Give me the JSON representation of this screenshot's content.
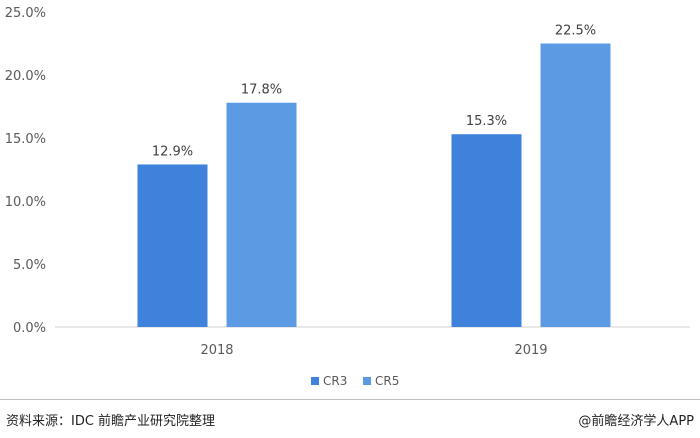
{
  "chart_data": {
    "type": "bar",
    "categories": [
      "2018",
      "2019"
    ],
    "series": [
      {
        "name": "CR3",
        "values": [
          12.9,
          15.3
        ],
        "color": "#3e82dc"
      },
      {
        "name": "CR5",
        "values": [
          17.8,
          22.5
        ],
        "color": "#5c9be4"
      }
    ],
    "data_labels": [
      [
        "12.9%",
        "15.3%"
      ],
      [
        "17.8%",
        "22.5%"
      ]
    ],
    "yticks": [
      "0.0%",
      "5.0%",
      "10.0%",
      "15.0%",
      "20.0%",
      "25.0%"
    ],
    "ylim": [
      0,
      25
    ],
    "grid": false,
    "legend_position": "bottom-center"
  },
  "footer": {
    "source": "资料来源：IDC 前瞻产业研究院整理",
    "brand": "@前瞻经济学人APP"
  }
}
